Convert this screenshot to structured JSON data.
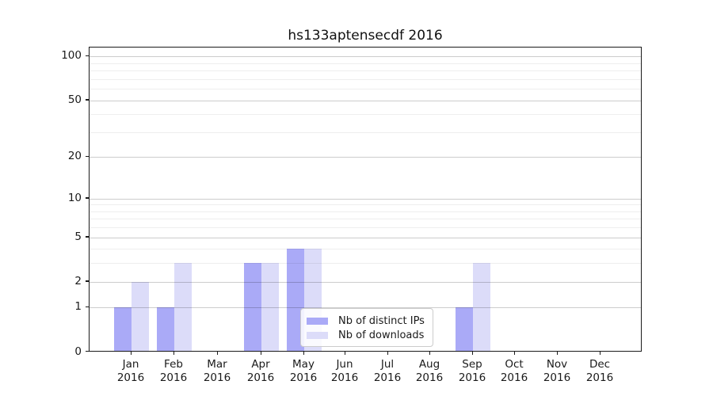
{
  "chart_data": {
    "type": "bar",
    "title": "hs133aptensecdf 2016",
    "categories": [
      "Jan",
      "Feb",
      "Mar",
      "Apr",
      "May",
      "Jun",
      "Jul",
      "Aug",
      "Sep",
      "Oct",
      "Nov",
      "Dec"
    ],
    "year_label": "2016",
    "series": [
      {
        "name": "Nb of distinct IPs",
        "color": "#aaaaf7",
        "values": [
          1,
          1,
          0,
          3,
          4,
          0,
          0,
          0,
          1,
          0,
          0,
          0
        ]
      },
      {
        "name": "Nb of downloads",
        "color": "#dcdcf9",
        "values": [
          2,
          3,
          0,
          3,
          4,
          0,
          0,
          0,
          3,
          0,
          0,
          0
        ]
      }
    ],
    "yscale": "log1p",
    "ylim": [
      0,
      115
    ],
    "yticks": [
      0,
      1,
      2,
      5,
      10,
      20,
      50,
      100
    ],
    "minor_gridlines": [
      3,
      4,
      6,
      7,
      8,
      9,
      30,
      40,
      60,
      70,
      80,
      90
    ],
    "grid": true,
    "legend_position": "lower center-right inside"
  },
  "colors": {
    "bar_dark": "#aaaaf7",
    "bar_light": "#dcdcf9",
    "axis": "#1a1a1a",
    "grid_major": "#cccccc",
    "grid_minor": "#eeeeee",
    "background": "#ffffff"
  }
}
